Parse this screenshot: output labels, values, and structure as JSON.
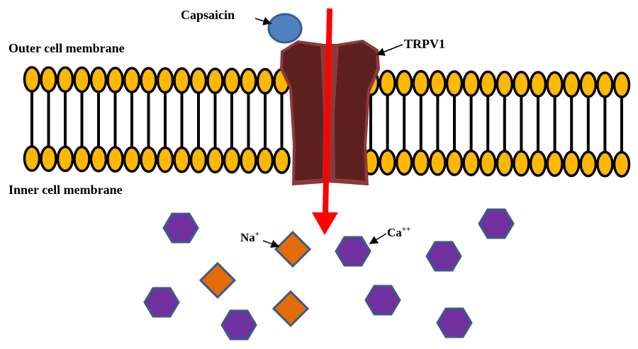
{
  "labels": {
    "capsaicin": "Capsaicin",
    "trpv1": "TRPV1",
    "outer": "Outer cell membrane",
    "inner": "Inner cell membrane",
    "na": "Na",
    "na_sup": "+",
    "ca": "Ca",
    "ca_sup": "++"
  },
  "colors": {
    "lipid_head": "#FFB800",
    "channel": "#5E1F1F",
    "channel_edge": "#8B3A3A",
    "capsaicin": "#4F81BD",
    "arrow": "#FF0000",
    "ca_ion": "#7030A0",
    "na_ion": "#E36C09",
    "ion_edge": "#3C5A82"
  }
}
